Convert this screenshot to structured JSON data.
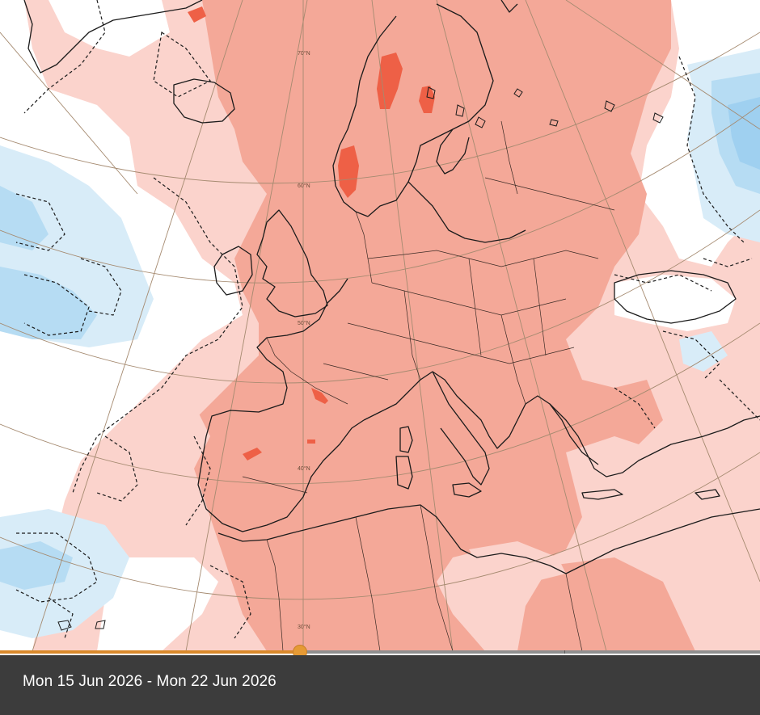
{
  "map": {
    "latitude_labels": [
      "70°N",
      "60°N",
      "50°N",
      "40°N",
      "30°N"
    ],
    "anomaly_colors": {
      "strong_warm": "#ee6046",
      "warm": "#f4a898",
      "slight_warm": "#fbd3cc",
      "neutral": "#ffffff",
      "slight_cool": "#d8ecf8",
      "cool": "#b6dcf3",
      "strong_cool": "#9fd0f0"
    },
    "coastline_color": "#1b1b1b",
    "graticule_color": "#a58a70"
  },
  "timeline": {
    "position_fraction": 0.395,
    "track_color": "#8f8f8f",
    "progress_color": "#d9892b"
  },
  "caption": {
    "date_range": "Mon 15 Jun 2026 - Mon 22 Jun 2026"
  }
}
